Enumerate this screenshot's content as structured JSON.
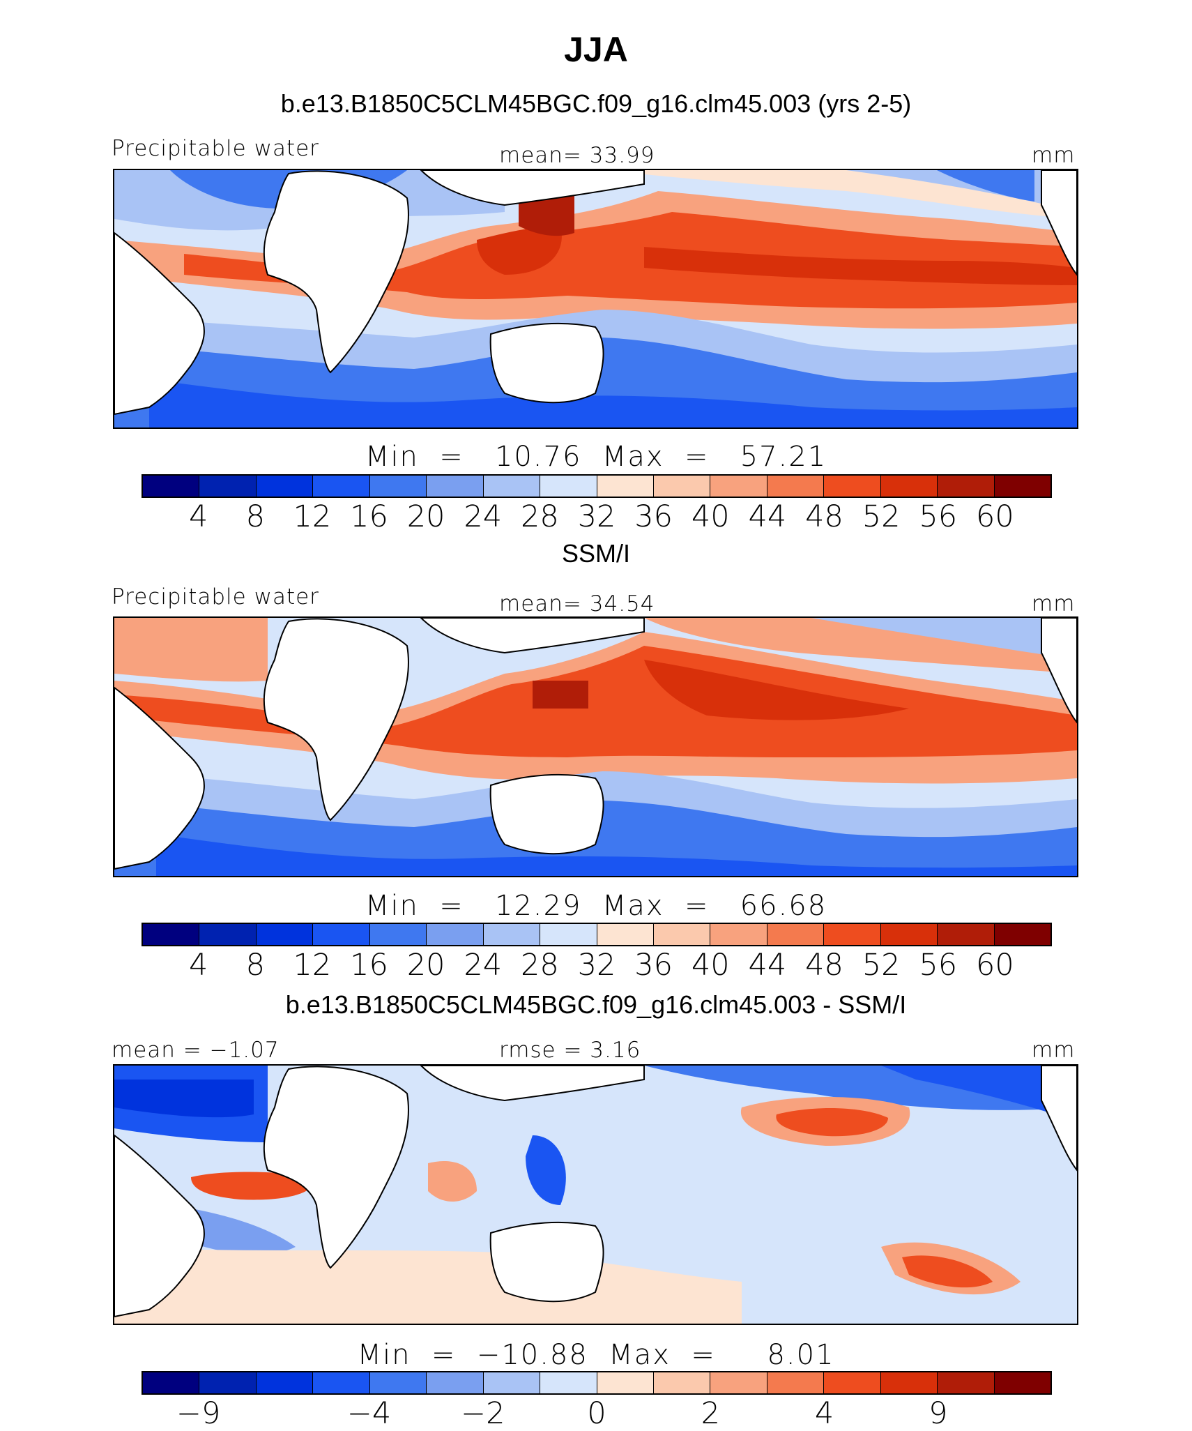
{
  "title": "JJA",
  "colormap": [
    "#00007f",
    "#0022b0",
    "#0033dd",
    "#1a55f2",
    "#3f78f0",
    "#7a9ff0",
    "#a9c3f5",
    "#d6e5fb",
    "#fde4d2",
    "#fbc9ad",
    "#f8a27e",
    "#f47a4e",
    "#ee4d1f",
    "#d8300a",
    "#b01d08",
    "#7f0000"
  ],
  "panels": [
    {
      "title": "b.e13.B1850C5CLM45BGC.f09_g16.clm45.003 (yrs 2-5)",
      "left_label": "Precipitable water",
      "center_label": "mean=   33.99",
      "right_label": "mm",
      "stats": "Min  =   10.76  Max  =   57.21",
      "colorbar_ticks": [
        "4",
        "8",
        "12",
        "16",
        "20",
        "24",
        "28",
        "32",
        "36",
        "40",
        "44",
        "48",
        "52",
        "56",
        "60"
      ]
    },
    {
      "title": "SSM/I",
      "left_label": "Precipitable water",
      "center_label": "mean=   34.54",
      "right_label": "mm",
      "stats": "Min  =   12.29  Max  =   66.68",
      "colorbar_ticks": [
        "4",
        "8",
        "12",
        "16",
        "20",
        "24",
        "28",
        "32",
        "36",
        "40",
        "44",
        "48",
        "52",
        "56",
        "60"
      ]
    },
    {
      "title": "b.e13.B1850C5CLM45BGC.f09_g16.clm45.003 - SSM/I",
      "left_label": "mean  =   −1.07",
      "center_label": "rmse  =    3.16",
      "right_label": "mm",
      "stats": "Min  =  −10.88  Max  =     8.01",
      "colorbar_ticks": [
        "−9",
        "−4",
        "−2",
        "0",
        "2",
        "4",
        "9"
      ]
    }
  ]
}
